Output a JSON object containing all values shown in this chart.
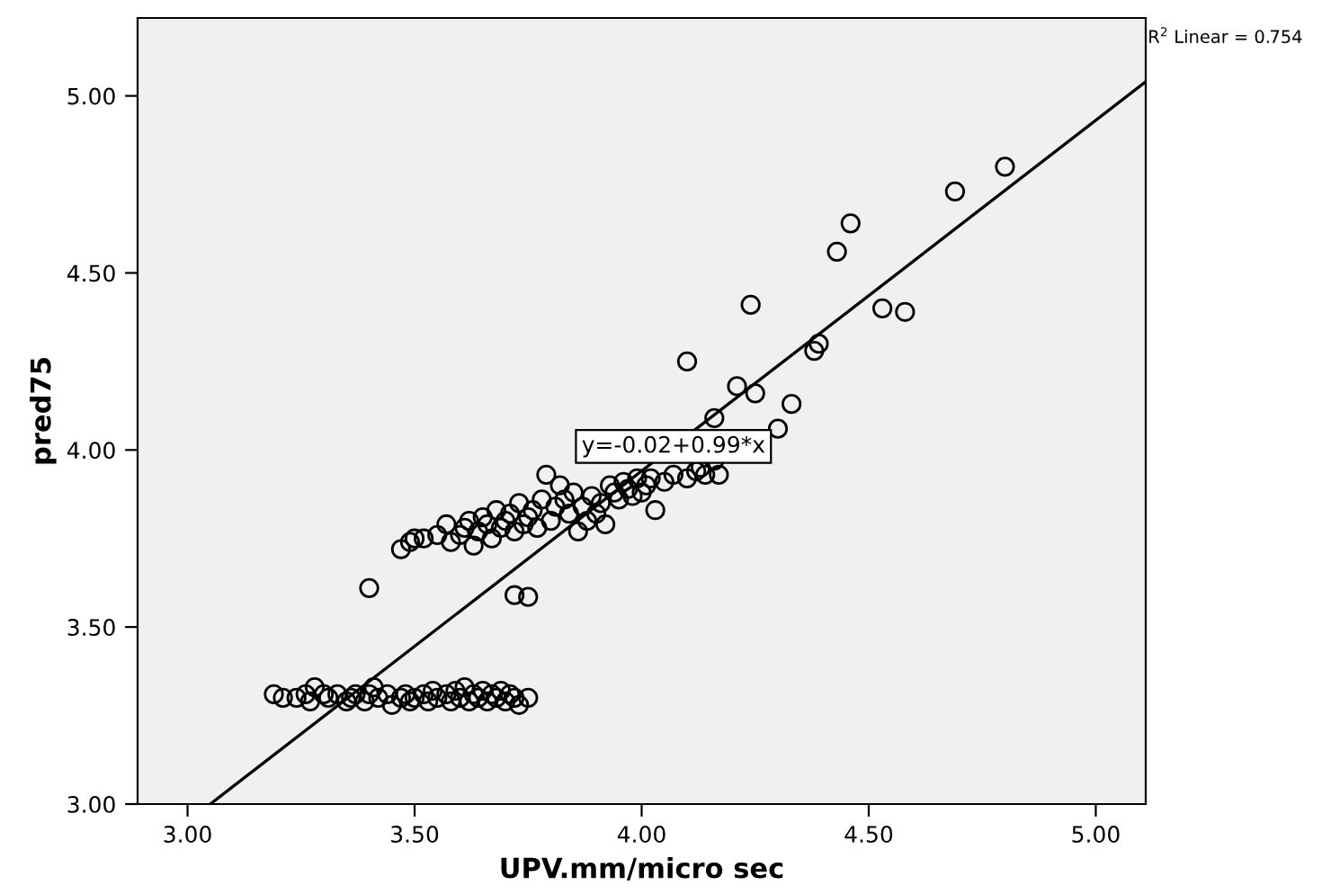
{
  "chart_data": {
    "type": "scatter",
    "xlabel": "UPV.mm/micro sec",
    "ylabel": "pred75",
    "xlim": [
      2.89,
      5.11
    ],
    "ylim": [
      3.0,
      5.22
    ],
    "xticks": [
      {
        "value": 3.0,
        "label": "3.00"
      },
      {
        "value": 3.5,
        "label": "3.50"
      },
      {
        "value": 4.0,
        "label": "4.00"
      },
      {
        "value": 4.5,
        "label": "4.50"
      },
      {
        "value": 5.0,
        "label": "5.00"
      }
    ],
    "yticks": [
      {
        "value": 3.0,
        "label": "3.00"
      },
      {
        "value": 3.5,
        "label": "3.50"
      },
      {
        "value": 4.0,
        "label": "4.00"
      },
      {
        "value": 4.5,
        "label": "4.50"
      },
      {
        "value": 5.0,
        "label": "5.00"
      }
    ],
    "grid": false,
    "legend": false,
    "annotations": [
      {
        "text": "y=-0.02+0.99*x",
        "x": 4.07,
        "y": 4.01
      },
      "R$^{2}$ Linear = 0.754"
    ],
    "series": [
      {
        "color": "#000000",
        "marker": "circle",
        "x": [
          3.19,
          3.21,
          3.24,
          3.26,
          3.27,
          3.28,
          3.3,
          3.31,
          3.33,
          3.35,
          3.36,
          3.37,
          3.39,
          3.4,
          3.41,
          3.42,
          3.44,
          3.45,
          3.47,
          3.48,
          3.49,
          3.5,
          3.52,
          3.53,
          3.54,
          3.55,
          3.57,
          3.58,
          3.59,
          3.6,
          3.61,
          3.62,
          3.63,
          3.64,
          3.65,
          3.66,
          3.67,
          3.68,
          3.69,
          3.7,
          3.71,
          3.72,
          3.73,
          3.75,
          3.47,
          3.49,
          3.5,
          3.52,
          3.55,
          3.57,
          3.58,
          3.6,
          3.61,
          3.62,
          3.63,
          3.64,
          3.65,
          3.66,
          3.67,
          3.68,
          3.69,
          3.7,
          3.71,
          3.72,
          3.73,
          3.74,
          3.75,
          3.76,
          3.77,
          3.78,
          3.79,
          3.8,
          3.81,
          3.82,
          3.83,
          3.84,
          3.85,
          3.86,
          3.87,
          3.88,
          3.89,
          3.9,
          3.91,
          3.92,
          3.93,
          3.94,
          3.95,
          3.96,
          3.97,
          3.98,
          3.99,
          4.0,
          4.01,
          4.02,
          4.03,
          4.05,
          4.07,
          4.1,
          4.12,
          4.13,
          4.14,
          4.16,
          4.17,
          3.4,
          3.72,
          3.75,
          4.8,
          4.69,
          4.46,
          4.43,
          4.24,
          4.53,
          4.58,
          4.1,
          4.39,
          4.38,
          4.21,
          4.25,
          4.33,
          4.16,
          4.3
        ],
        "values": [
          3.31,
          3.3,
          3.3,
          3.31,
          3.29,
          3.33,
          3.31,
          3.3,
          3.31,
          3.29,
          3.3,
          3.31,
          3.29,
          3.31,
          3.33,
          3.3,
          3.31,
          3.28,
          3.3,
          3.31,
          3.29,
          3.3,
          3.31,
          3.29,
          3.32,
          3.3,
          3.31,
          3.29,
          3.32,
          3.3,
          3.33,
          3.29,
          3.31,
          3.3,
          3.32,
          3.29,
          3.31,
          3.3,
          3.32,
          3.29,
          3.31,
          3.3,
          3.28,
          3.3,
          3.72,
          3.74,
          3.75,
          3.75,
          3.76,
          3.79,
          3.74,
          3.76,
          3.78,
          3.8,
          3.73,
          3.77,
          3.81,
          3.79,
          3.75,
          3.83,
          3.78,
          3.8,
          3.82,
          3.77,
          3.85,
          3.79,
          3.81,
          3.83,
          3.78,
          3.86,
          3.93,
          3.8,
          3.84,
          3.9,
          3.86,
          3.82,
          3.88,
          3.77,
          3.84,
          3.8,
          3.87,
          3.82,
          3.85,
          3.79,
          3.9,
          3.88,
          3.86,
          3.91,
          3.89,
          3.87,
          3.92,
          3.88,
          3.9,
          3.92,
          3.83,
          3.91,
          3.93,
          3.92,
          3.94,
          3.95,
          3.93,
          3.97,
          3.93,
          3.61,
          3.59,
          3.585,
          4.8,
          4.73,
          4.64,
          4.56,
          4.41,
          4.4,
          4.39,
          4.25,
          4.3,
          4.28,
          4.18,
          4.16,
          4.13,
          4.09,
          4.06
        ]
      },
      {
        "type": "line",
        "marker": "none",
        "color": "#000000",
        "x": [
          3.05,
          5.11
        ],
        "values": [
          3.0,
          5.04
        ]
      }
    ]
  }
}
